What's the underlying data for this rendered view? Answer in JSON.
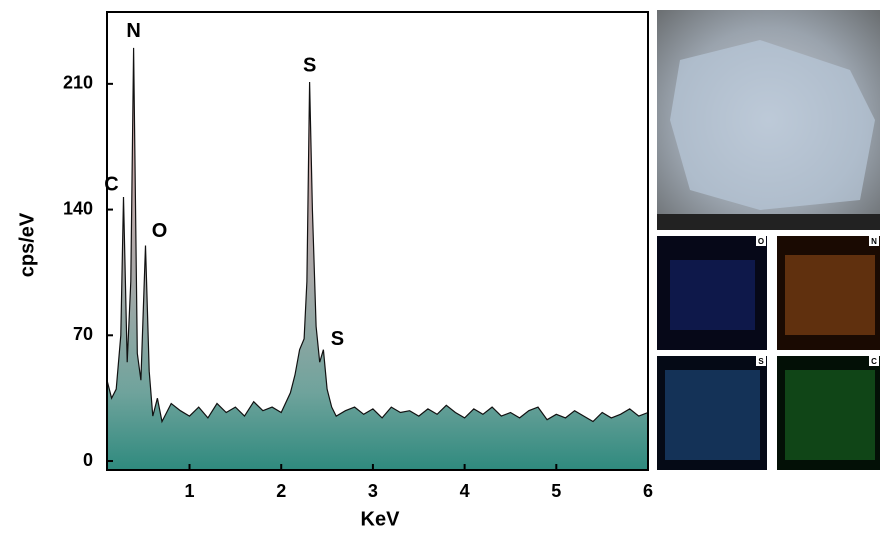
{
  "chart_data": {
    "type": "area",
    "xlabel": "KeV",
    "ylabel": "cps/eV",
    "x": [
      0.1,
      0.15,
      0.2,
      0.25,
      0.28,
      0.32,
      0.36,
      0.39,
      0.43,
      0.47,
      0.52,
      0.56,
      0.6,
      0.65,
      0.7,
      0.8,
      0.9,
      1.0,
      1.1,
      1.2,
      1.3,
      1.4,
      1.5,
      1.6,
      1.7,
      1.8,
      1.9,
      2.0,
      2.1,
      2.15,
      2.2,
      2.25,
      2.28,
      2.31,
      2.34,
      2.38,
      2.42,
      2.46,
      2.5,
      2.55,
      2.6,
      2.7,
      2.8,
      2.9,
      3.0,
      3.1,
      3.2,
      3.3,
      3.4,
      3.5,
      3.6,
      3.7,
      3.8,
      3.9,
      4.0,
      4.1,
      4.2,
      4.3,
      4.4,
      4.5,
      4.6,
      4.7,
      4.8,
      4.9,
      5.0,
      5.1,
      5.2,
      5.3,
      5.4,
      5.5,
      5.6,
      5.7,
      5.8,
      5.9,
      6.0
    ],
    "values": [
      45,
      35,
      40,
      70,
      147,
      55,
      100,
      230,
      60,
      45,
      120,
      50,
      25,
      35,
      22,
      32,
      28,
      25,
      30,
      24,
      32,
      27,
      30,
      25,
      33,
      28,
      30,
      27,
      38,
      48,
      62,
      68,
      100,
      211,
      140,
      75,
      55,
      62,
      40,
      30,
      25,
      28,
      30,
      26,
      29,
      24,
      30,
      27,
      28,
      25,
      29,
      26,
      31,
      27,
      24,
      29,
      26,
      30,
      25,
      27,
      24,
      28,
      30,
      23,
      26,
      24,
      28,
      25,
      22,
      27,
      24,
      26,
      29,
      25,
      27
    ],
    "color": "#111111",
    "xlim": [
      0.1,
      6
    ],
    "ylim": [
      -5,
      250
    ],
    "xticks": [
      1,
      2,
      3,
      4,
      5,
      6
    ],
    "yticks": [
      0,
      70,
      140,
      210
    ],
    "annotations": [
      {
        "text": "N",
        "x": 0.39,
        "y": 230
      },
      {
        "text": "C",
        "x": 0.28,
        "y": 147
      },
      {
        "text": "O",
        "x": 0.52,
        "y": 120
      },
      {
        "text": "S",
        "x": 2.31,
        "y": 211
      },
      {
        "text": "S",
        "x": 2.46,
        "y": 62
      }
    ]
  },
  "maps": [
    "O",
    "N",
    "S",
    "C"
  ]
}
